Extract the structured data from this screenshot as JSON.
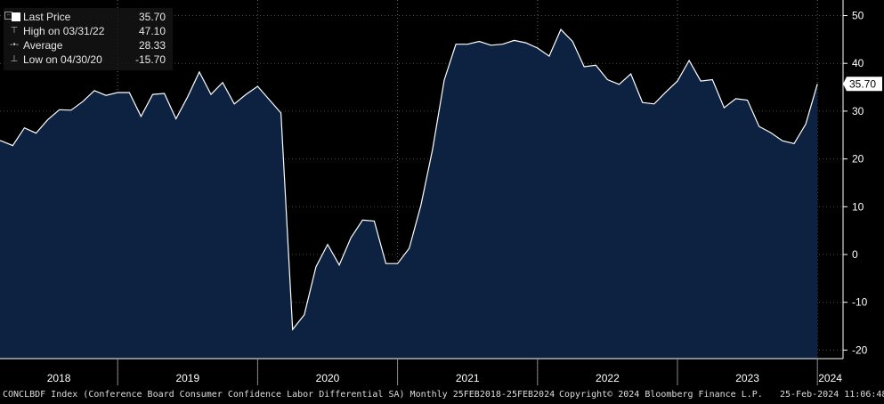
{
  "legend": {
    "last_price_label": "Last Price",
    "last_price_value": "35.70",
    "high_label": "High on 03/31/22",
    "high_value": "47.10",
    "average_label": "Average",
    "average_value": "28.33",
    "low_label": "Low on 04/30/20",
    "low_value": "-15.70"
  },
  "footer": {
    "description": "CONCLBDF Index (Conference Board Consumer Confidence Labor Differential SA)  Monthly 25FEB2018-25FEB2024",
    "copyright": "Copyright© 2024 Bloomberg Finance L.P.",
    "timestamp": "25-Feb-2024 11:06:48"
  },
  "colors": {
    "background": "#000000",
    "area_fill": "#0c2240",
    "line": "#ffffff",
    "grid": "#4a4a4a",
    "last_value_box": "#ffffff"
  },
  "chart_data": {
    "type": "area",
    "ylim": [
      -22,
      52
    ],
    "y_ticks": [
      50,
      40,
      30,
      20,
      10,
      0,
      -10,
      -20
    ],
    "y_tick_labels": [
      "50",
      "40",
      "30",
      "20",
      "10",
      "0",
      "-10",
      "-20"
    ],
    "x_tick_labels": [
      "2018",
      "2019",
      "2020",
      "2021",
      "2022",
      "2023",
      "2024"
    ],
    "y_axis_position": "right",
    "grid": true,
    "last_value_label": "35.70",
    "series": [
      {
        "x": [
          "2018-02",
          "2018-03",
          "2018-04",
          "2018-05",
          "2018-06",
          "2018-07",
          "2018-08",
          "2018-09",
          "2018-10",
          "2018-11",
          "2018-12",
          "2019-01",
          "2019-02",
          "2019-03",
          "2019-04",
          "2019-05",
          "2019-06",
          "2019-07",
          "2019-08",
          "2019-09",
          "2019-10",
          "2019-11",
          "2019-12",
          "2020-01",
          "2020-02",
          "2020-03",
          "2020-04",
          "2020-05",
          "2020-06",
          "2020-07",
          "2020-08",
          "2020-09",
          "2020-10",
          "2020-11",
          "2020-12",
          "2021-01",
          "2021-02",
          "2021-03",
          "2021-04",
          "2021-05",
          "2021-06",
          "2021-07",
          "2021-08",
          "2021-09",
          "2021-10",
          "2021-11",
          "2021-12",
          "2022-01",
          "2022-02",
          "2022-03",
          "2022-04",
          "2022-05",
          "2022-06",
          "2022-07",
          "2022-08",
          "2022-09",
          "2022-10",
          "2022-11",
          "2022-12",
          "2023-01",
          "2023-02",
          "2023-03",
          "2023-04",
          "2023-05",
          "2023-06",
          "2023-07",
          "2023-08",
          "2023-09",
          "2023-10",
          "2023-11",
          "2023-12",
          "2024-01"
        ],
        "values": [
          24.0,
          23.8,
          22.8,
          26.5,
          25.4,
          28.2,
          30.3,
          30.2,
          32.0,
          34.3,
          33.3,
          33.9,
          33.9,
          28.9,
          33.5,
          33.7,
          28.4,
          33.0,
          38.2,
          33.5,
          36.0,
          31.5,
          33.5,
          35.2,
          32.4,
          29.6,
          -15.7,
          -12.6,
          -2.6,
          2.1,
          -2.2,
          3.5,
          7.2,
          7.0,
          -1.9,
          -1.9,
          1.3,
          10.3,
          22.0,
          36.5,
          44.0,
          44.0,
          44.6,
          43.8,
          44.0,
          44.8,
          44.3,
          43.2,
          41.5,
          47.1,
          44.6,
          39.3,
          39.6,
          36.6,
          35.6,
          37.8,
          31.8,
          31.5,
          34.0,
          36.3,
          40.6,
          36.3,
          36.6,
          30.7,
          32.6,
          32.3,
          26.8,
          25.5,
          23.8,
          23.2,
          27.3,
          35.7
        ]
      }
    ]
  }
}
